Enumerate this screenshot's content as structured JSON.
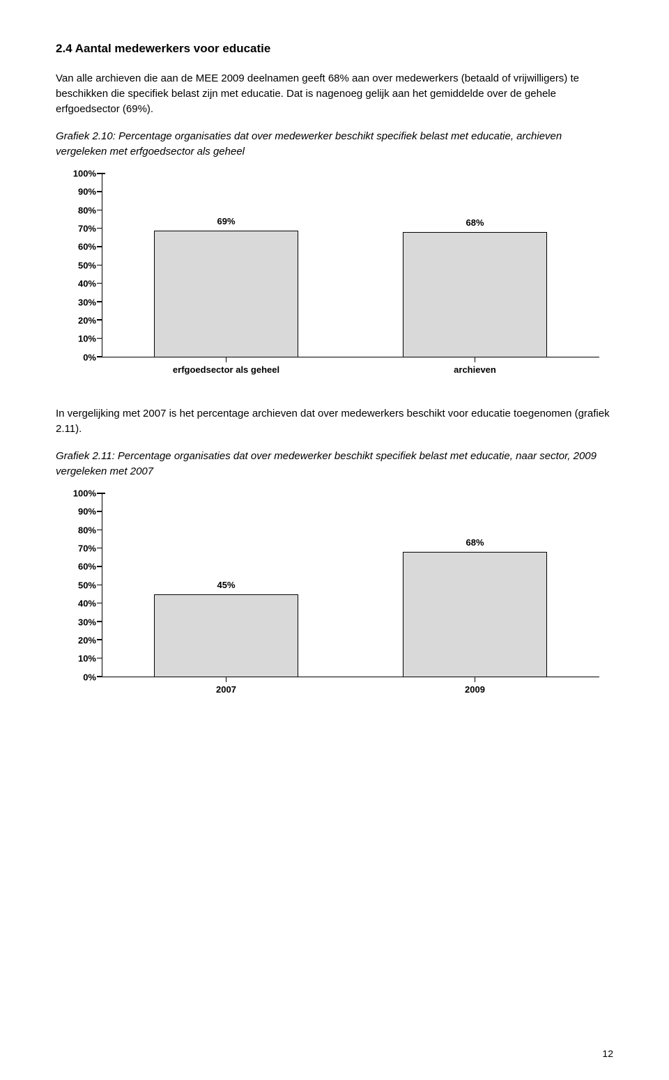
{
  "sectionHeading": "2.4   Aantal medewerkers voor educatie",
  "para1": "Van alle archieven die aan de MEE 2009 deelnamen geeft 68% aan over medewerkers (betaald of vrijwilligers) te beschikken die specifiek belast zijn met educatie. Dat is nagenoeg gelijk aan het gemiddelde over de gehele erfgoedsector (69%).",
  "graf1Title": "Grafiek 2.10: Percentage organisaties dat over medewerker beschikt specifiek belast met educatie, archieven vergeleken met erfgoedsector als geheel",
  "para2": "In vergelijking met 2007 is het percentage archieven dat over medewerkers beschikt voor educatie toegenomen (grafiek 2.11).",
  "graf2Title": "Grafiek 2.11: Percentage organisaties dat over medewerker beschikt specifiek belast met educatie, naar sector, 2009 vergeleken met 2007",
  "pageNumber": "12",
  "chart1": {
    "yTicks": [
      "0%",
      "10%",
      "20%",
      "30%",
      "40%",
      "50%",
      "60%",
      "70%",
      "80%",
      "90%",
      "100%"
    ],
    "bars": [
      {
        "label": "erfgoedsector als geheel",
        "valueLabel": "69%",
        "value": 69
      },
      {
        "label": "archieven",
        "valueLabel": "68%",
        "value": 68
      }
    ],
    "barColor": "#d9d9d9",
    "borderColor": "#000000"
  },
  "chart2": {
    "yTicks": [
      "0%",
      "10%",
      "20%",
      "30%",
      "40%",
      "50%",
      "60%",
      "70%",
      "80%",
      "90%",
      "100%"
    ],
    "bars": [
      {
        "label": "2007",
        "valueLabel": "45%",
        "value": 45
      },
      {
        "label": "2009",
        "valueLabel": "68%",
        "value": 68
      }
    ],
    "barColor": "#d9d9d9",
    "borderColor": "#000000"
  }
}
